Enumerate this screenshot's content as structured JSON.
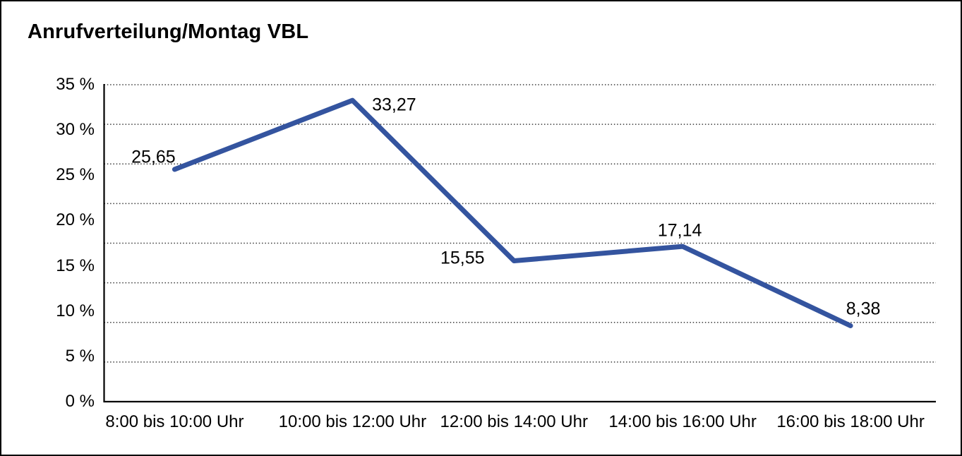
{
  "title": "Anrufverteilung/Montag VBL",
  "chart_data": {
    "type": "line",
    "title": "Anrufverteilung/Montag VBL",
    "categories": [
      "8:00 bis 10:00 Uhr",
      "10:00 bis 12:00 Uhr",
      "12:00 bis 14:00 Uhr",
      "14:00 bis 16:00 Uhr",
      "16:00 bis 18:00 Uhr"
    ],
    "values": [
      25.65,
      33.27,
      15.55,
      17.14,
      8.38
    ],
    "point_labels": [
      "25,65",
      "33,27",
      "15,55",
      "17,14",
      "8,38"
    ],
    "y_ticks": [
      "0 %",
      "5 %",
      "10 %",
      "15 %",
      "20 %",
      "25 %",
      "30 %",
      "35 %"
    ],
    "ylim": [
      0,
      35
    ],
    "xlabel": "",
    "ylabel": "",
    "grid": "horizontal-dotted",
    "legend": "none",
    "line_color": "#34549F",
    "axis_color": "#000000",
    "gridline_color": "#3a3a3a"
  }
}
